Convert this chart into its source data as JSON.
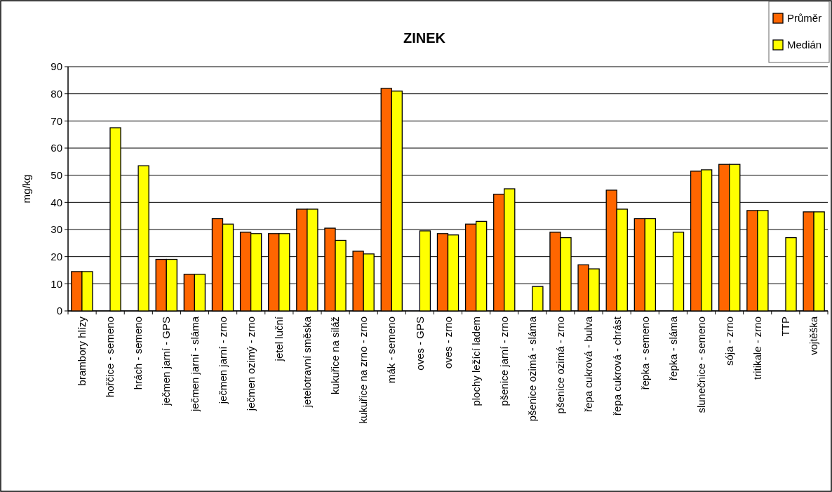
{
  "chart_data": {
    "type": "bar",
    "title": "ZINEK",
    "ylabel": "mg/kg",
    "categories": [
      "brambory hlízy",
      "hořčice - semeno",
      "hrách - semeno",
      "ječmen jarní - GPS",
      "ječmen jarní - sláma",
      "ječmen jarní - zrno",
      "ječmen ozimý - zrno",
      "jetel luční",
      "jetelotravní směska",
      "kukuřice na siláž",
      "kukuřice na zrno - zrno",
      "mák - semeno",
      "oves - GPS",
      "oves - zrno",
      "plochy ležící ladem",
      "pšenice jarní - zrno",
      "pšenice ozimá - sláma",
      "pšenice ozimá - zrno",
      "řepa cukrová - bulva",
      "řepa cukrová - chrást",
      "řepka - semeno",
      "řepka - sláma",
      "slunečnice - semeno",
      "sója - zrno",
      "tritikale - zrno",
      "TTP",
      "vojtěška"
    ],
    "series": [
      {
        "name": "Průměr",
        "color": "#ff6600",
        "values": [
          14.5,
          null,
          null,
          19,
          13.5,
          34,
          29,
          28.5,
          37.5,
          30.5,
          22,
          82,
          null,
          28.5,
          32,
          43,
          null,
          29,
          17,
          44.5,
          34,
          null,
          51.5,
          54,
          37,
          null,
          36.5
        ]
      },
      {
        "name": "Medián",
        "color": "#ffff00",
        "values": [
          14.5,
          67.5,
          53.5,
          19,
          13.5,
          32,
          28.5,
          28.5,
          37.5,
          26,
          21,
          81,
          29.5,
          28,
          33,
          45,
          9,
          27,
          15.5,
          37.5,
          34,
          29,
          52,
          54,
          37,
          27,
          36.5
        ]
      }
    ],
    "ylim": [
      0,
      90
    ],
    "yticks": [
      0,
      10,
      20,
      30,
      40,
      50,
      60,
      70,
      80,
      90
    ],
    "grid": "y",
    "legend": "top right"
  }
}
